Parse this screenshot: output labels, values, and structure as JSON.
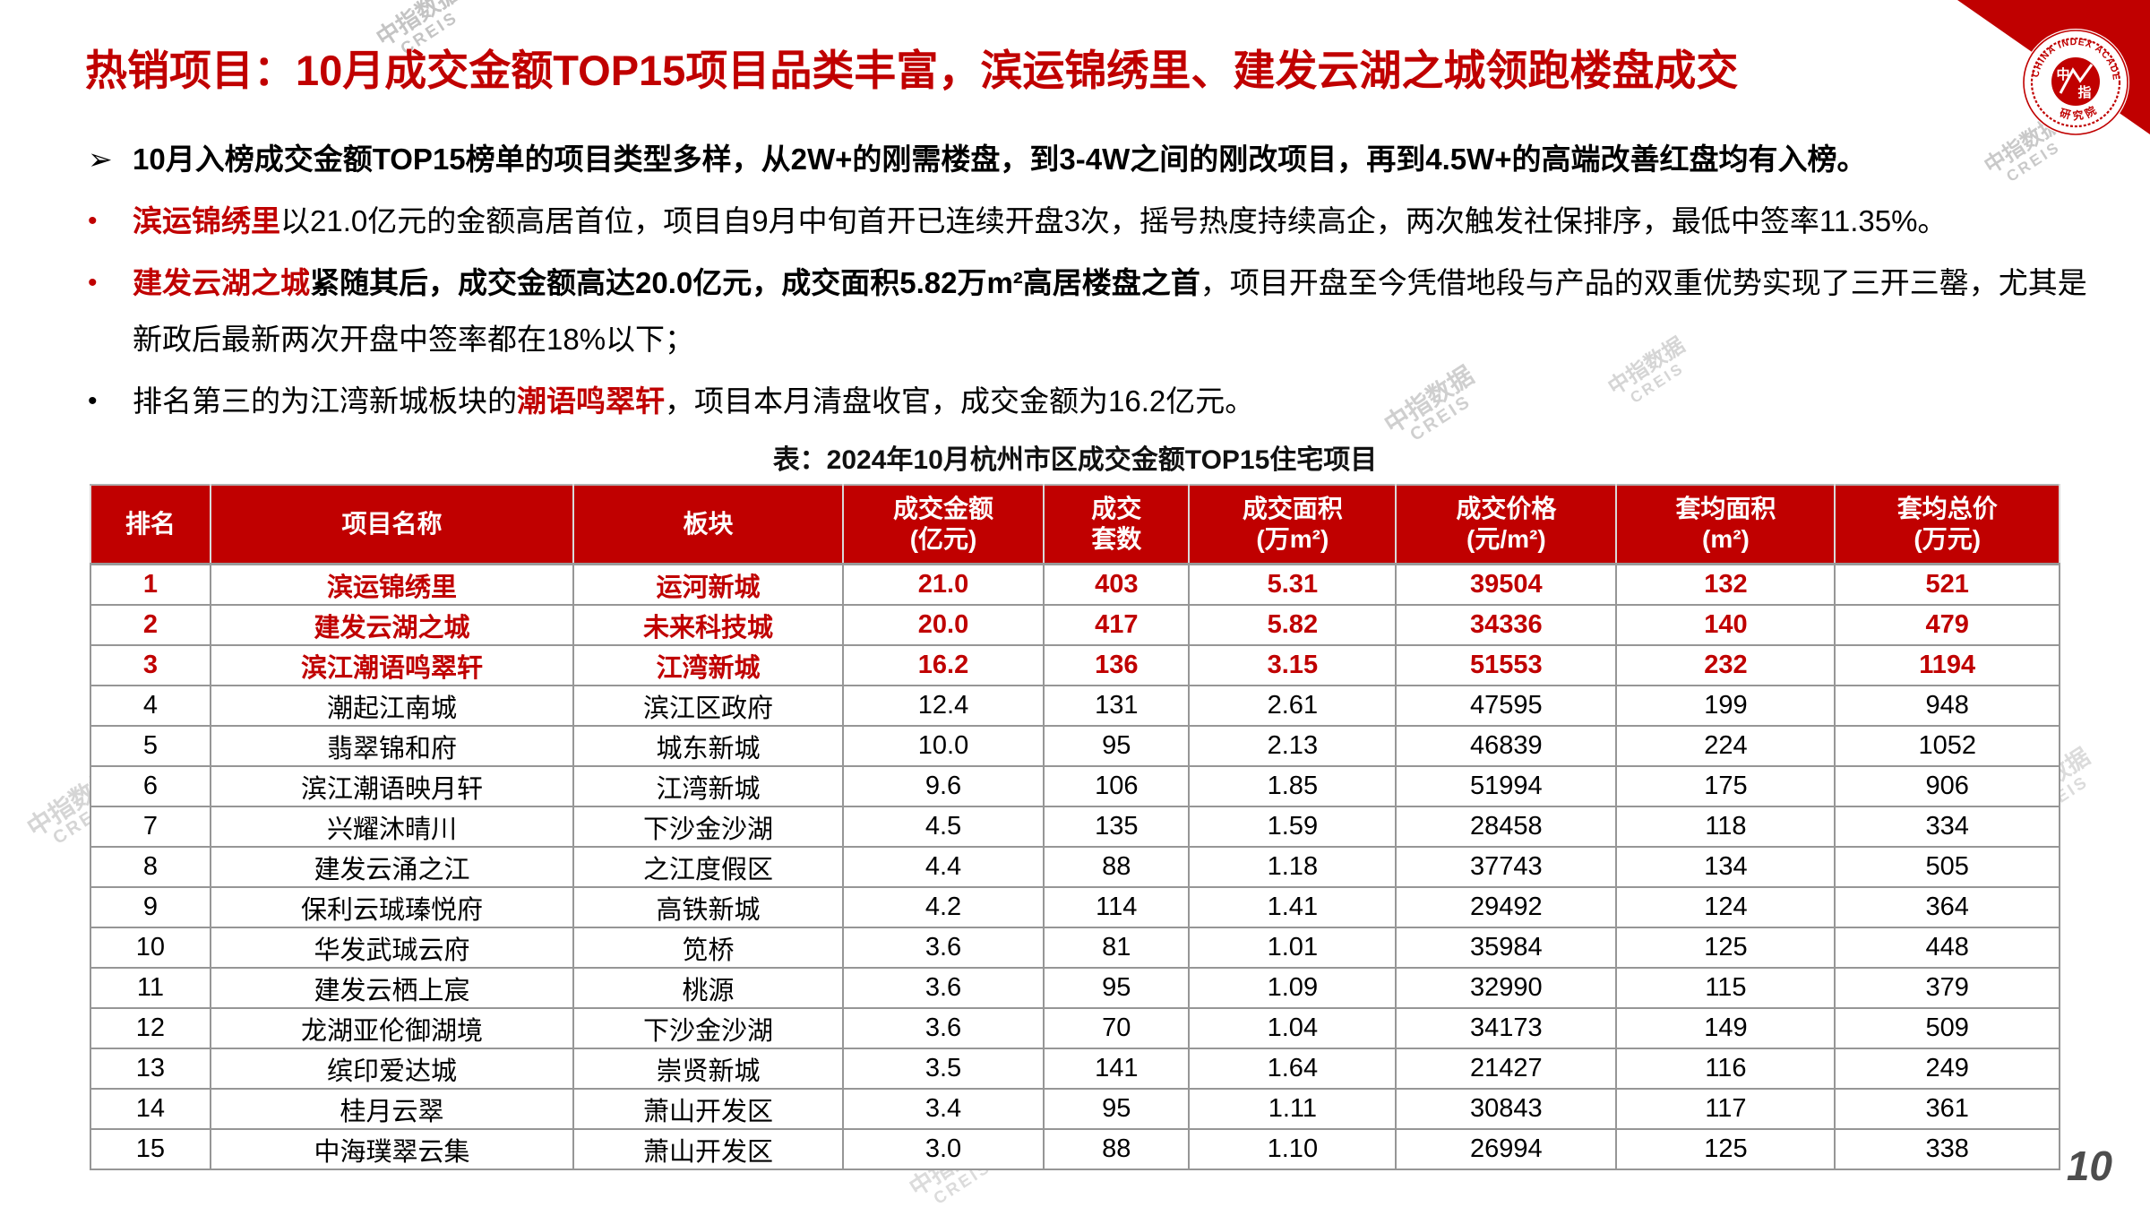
{
  "title": "热销项目：10月成交金额TOP15项目品类丰富，滨运锦绣里、建发云湖之城领跑楼盘成交",
  "page_number": "10",
  "logo": {
    "ring_text": "CHINA INDEX ACADEMY",
    "bottom_text": "研究院",
    "seal_top": "中",
    "seal_bottom": "指"
  },
  "watermark": {
    "line1": "中指数据",
    "line2": "CREIS"
  },
  "bullets": [
    {
      "marker": "➢",
      "marker_style": "black arrow",
      "segments": [
        {
          "text": "10月入榜成交金额TOP15榜单的项目类型多样，从2W+的刚需楼盘，到3-4W之间的刚改项目，再到4.5W+的高端改善红盘均有入榜。",
          "style": "bold"
        }
      ]
    },
    {
      "marker": "•",
      "marker_style": "red",
      "segments": [
        {
          "text": "滨运锦绣里",
          "style": "red-bold"
        },
        {
          "text": "以21.0亿元的金额高居首位，项目自9月中旬首开已连续开盘3次，摇号热度持续高企，两次触发社保排序，最低中签率11.35%。",
          "style": "normal"
        }
      ]
    },
    {
      "marker": "•",
      "marker_style": "red",
      "segments": [
        {
          "text": "建发云湖之城",
          "style": "red-bold"
        },
        {
          "text": "紧随其后，成交金额高达20.0亿元，成交面积5.82万m²高居楼盘之首",
          "style": "bold"
        },
        {
          "text": "，项目开盘至今凭借地段与产品的双重优势实现了三开三罄，尤其是新政后最新两次开盘中签率都在18%以下；",
          "style": "normal"
        }
      ]
    },
    {
      "marker": "•",
      "marker_style": "black",
      "segments": [
        {
          "text": "排名第三的为江湾新城板块的",
          "style": "normal"
        },
        {
          "text": "潮语鸣翠轩",
          "style": "red-bold"
        },
        {
          "text": "，项目本月清盘收官，成交金额为16.2亿元。",
          "style": "normal"
        }
      ]
    }
  ],
  "table": {
    "caption": "表：2024年10月杭州市区成交金额TOP15住宅项目",
    "columns": [
      {
        "key": "rank",
        "label": "排名",
        "sub": ""
      },
      {
        "key": "project-name",
        "label": "项目名称",
        "sub": ""
      },
      {
        "key": "district",
        "label": "板块",
        "sub": ""
      },
      {
        "key": "transaction-amount",
        "label": "成交金额",
        "sub": "(亿元)"
      },
      {
        "key": "units-sold",
        "label": "成交",
        "sub": "套数"
      },
      {
        "key": "transaction-area",
        "label": "成交面积",
        "sub": "(万m²)"
      },
      {
        "key": "transaction-price",
        "label": "成交价格",
        "sub": "(元/m²)"
      },
      {
        "key": "avg-area",
        "label": "套均面积",
        "sub": "(m²)"
      },
      {
        "key": "avg-total-price",
        "label": "套均总价",
        "sub": "(万元)"
      }
    ],
    "rows": [
      {
        "highlight": true,
        "cells": [
          "1",
          "滨运锦绣里",
          "运河新城",
          "21.0",
          "403",
          "5.31",
          "39504",
          "132",
          "521"
        ]
      },
      {
        "highlight": true,
        "cells": [
          "2",
          "建发云湖之城",
          "未来科技城",
          "20.0",
          "417",
          "5.82",
          "34336",
          "140",
          "479"
        ]
      },
      {
        "highlight": true,
        "cells": [
          "3",
          "滨江潮语鸣翠轩",
          "江湾新城",
          "16.2",
          "136",
          "3.15",
          "51553",
          "232",
          "1194"
        ]
      },
      {
        "highlight": false,
        "cells": [
          "4",
          "潮起江南城",
          "滨江区政府",
          "12.4",
          "131",
          "2.61",
          "47595",
          "199",
          "948"
        ]
      },
      {
        "highlight": false,
        "cells": [
          "5",
          "翡翠锦和府",
          "城东新城",
          "10.0",
          "95",
          "2.13",
          "46839",
          "224",
          "1052"
        ]
      },
      {
        "highlight": false,
        "cells": [
          "6",
          "滨江潮语映月轩",
          "江湾新城",
          "9.6",
          "106",
          "1.85",
          "51994",
          "175",
          "906"
        ]
      },
      {
        "highlight": false,
        "cells": [
          "7",
          "兴耀沐晴川",
          "下沙金沙湖",
          "4.5",
          "135",
          "1.59",
          "28458",
          "118",
          "334"
        ]
      },
      {
        "highlight": false,
        "cells": [
          "8",
          "建发云涌之江",
          "之江度假区",
          "4.4",
          "88",
          "1.18",
          "37743",
          "134",
          "505"
        ]
      },
      {
        "highlight": false,
        "cells": [
          "9",
          "保利云珹瑧悦府",
          "高铁新城",
          "4.2",
          "114",
          "1.41",
          "29492",
          "124",
          "364"
        ]
      },
      {
        "highlight": false,
        "cells": [
          "10",
          "华发武珹云府",
          "笕桥",
          "3.6",
          "81",
          "1.01",
          "35984",
          "125",
          "448"
        ]
      },
      {
        "highlight": false,
        "cells": [
          "11",
          "建发云栖上宸",
          "桃源",
          "3.6",
          "95",
          "1.09",
          "32990",
          "115",
          "379"
        ]
      },
      {
        "highlight": false,
        "cells": [
          "12",
          "龙湖亚伦御湖境",
          "下沙金沙湖",
          "3.6",
          "70",
          "1.04",
          "34173",
          "149",
          "509"
        ]
      },
      {
        "highlight": false,
        "cells": [
          "13",
          "缤印爱达城",
          "崇贤新城",
          "3.5",
          "141",
          "1.64",
          "21427",
          "116",
          "249"
        ]
      },
      {
        "highlight": false,
        "cells": [
          "14",
          "桂月云翠",
          "萧山开发区",
          "3.4",
          "95",
          "1.11",
          "30843",
          "117",
          "361"
        ]
      },
      {
        "highlight": false,
        "cells": [
          "15",
          "中海璞翠云集",
          "萧山开发区",
          "3.0",
          "88",
          "1.10",
          "26994",
          "125",
          "338"
        ]
      }
    ]
  },
  "colors": {
    "accent_red": "#c00000",
    "header_text": "#ffffff",
    "border_gray": "#969696",
    "watermark_gray": "#8a8a8a",
    "page_number_gray": "#4d4d4d"
  }
}
